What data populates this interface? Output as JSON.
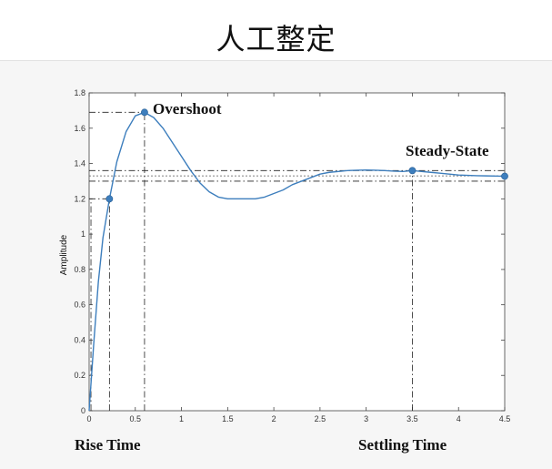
{
  "slide": {
    "title": "人工整定"
  },
  "chart_data": {
    "type": "line",
    "title": "",
    "xlabel": "",
    "ylabel": "Amplitude",
    "xlim": [
      0,
      4.5
    ],
    "ylim": [
      0,
      1.8
    ],
    "grid": false,
    "x_ticks": [
      "0",
      "0.5",
      "1",
      "1.5",
      "2",
      "2.5",
      "3",
      "3.5",
      "4",
      "4.5"
    ],
    "y_ticks": [
      "0",
      "0.2",
      "0.4",
      "0.6",
      "0.8",
      "1",
      "1.2",
      "1.4",
      "1.6",
      "1.8"
    ],
    "series": [
      {
        "color": "#3d7ebd",
        "x": [
          0,
          0.05,
          0.1,
          0.15,
          0.22,
          0.3,
          0.4,
          0.5,
          0.6,
          0.7,
          0.8,
          0.9,
          1.0,
          1.1,
          1.2,
          1.3,
          1.4,
          1.5,
          1.6,
          1.7,
          1.8,
          1.9,
          2.0,
          2.1,
          2.2,
          2.3,
          2.4,
          2.5,
          2.6,
          2.7,
          2.8,
          2.9,
          3.0,
          3.1,
          3.2,
          3.3,
          3.4,
          3.5,
          3.6,
          3.7,
          3.8,
          3.9,
          4.0,
          4.1,
          4.2,
          4.3,
          4.4,
          4.5
        ],
        "y": [
          0,
          0.38,
          0.73,
          0.98,
          1.2,
          1.41,
          1.58,
          1.67,
          1.69,
          1.66,
          1.6,
          1.52,
          1.44,
          1.36,
          1.29,
          1.24,
          1.21,
          1.2,
          1.2,
          1.2,
          1.2,
          1.21,
          1.23,
          1.25,
          1.28,
          1.3,
          1.32,
          1.34,
          1.35,
          1.355,
          1.36,
          1.362,
          1.363,
          1.362,
          1.36,
          1.357,
          1.355,
          1.36,
          1.355,
          1.35,
          1.345,
          1.34,
          1.335,
          1.333,
          1.331,
          1.33,
          1.329,
          1.328
        ]
      }
    ],
    "markers": [
      {
        "x": 0.22,
        "y": 1.2
      },
      {
        "x": 0.6,
        "y": 1.69
      },
      {
        "x": 3.5,
        "y": 1.36
      },
      {
        "x": 4.5,
        "y": 1.328
      }
    ],
    "reference_lines": {
      "horizontal": [
        1.69,
        1.36,
        1.33,
        1.3
      ],
      "vertical": [
        0.02,
        0.22,
        0.6,
        3.5
      ]
    },
    "annotations": {
      "overshoot": "Overshoot",
      "steady_state": "Steady-State",
      "rise_time": "Rise Time",
      "settling_time": "Settling Time"
    }
  }
}
